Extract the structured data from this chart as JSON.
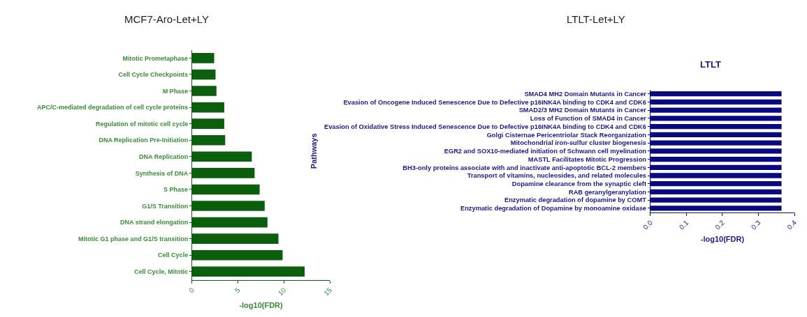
{
  "chart_data": [
    {
      "type": "bar",
      "orientation": "horizontal",
      "title": "MCF7-Aro-Let+LY",
      "xlabel": "-log10(FDR)",
      "categories": [
        "Mitotic Prometaphase",
        "Cell Cycle Checkpoints",
        "M Phase",
        "APC/C-mediated degradation of cell cycle proteins",
        "Regulation of mitotic cell cycle",
        "DNA Replication Pre-Initiation",
        "DNA Replication",
        "Synthesis of DNA",
        "S Phase",
        "G1/S Transition",
        "DNA strand elongation",
        "Mitotic G1 phase and G1/S transition",
        "Cell Cycle",
        "Cell Cycle, Mitotic"
      ],
      "values": [
        2.4,
        2.55,
        2.65,
        3.5,
        3.5,
        3.6,
        6.5,
        6.8,
        7.35,
        7.9,
        8.2,
        9.4,
        9.85,
        12.25
      ],
      "color": "#0b5e0b",
      "xlim": [
        0,
        15
      ],
      "xticks": [
        0,
        5,
        10,
        15
      ]
    },
    {
      "type": "bar",
      "orientation": "horizontal",
      "title": "LTLT-Let+LY",
      "subtitle": "LTLT",
      "xlabel": "-log10(FDR)",
      "ylabel": "Pathways",
      "categories": [
        "SMAD4 MH2 Domain Mutants in Cancer",
        "Evasion of Oncogene Induced Senescence Due to Defective p16INK4A binding to CDK4 and CDK6",
        "SMAD2/3 MH2 Domain Mutants in Cancer",
        "Loss of Function of SMAD4 in Cancer",
        "Evasion of Oxidative Stress Induced Senescence Due to Defective p16INK4A binding to CDK4 and CDK6",
        "Golgi Cisternae Pericentriolar Stack Reorganization",
        "Mitochondrial iron-sulfur cluster biogenesis",
        "EGR2 and SOX10-mediated initiation of Schwann cell myelination",
        "MASTL Facilitates Mitotic Progression",
        "BH3-only proteins associate with and inactivate anti-apoptotic BCL-2 members",
        "Transport of vitamins, nucleosides, and related molecules",
        "Dopamine clearance from the synaptic cleft",
        "RAB geranylgeranylation",
        "Enzymatic degradation of dopamine by COMT",
        "Enzymatic degradation of Dopamine by monoamine oxidase"
      ],
      "values": [
        0.364,
        0.364,
        0.364,
        0.364,
        0.364,
        0.364,
        0.364,
        0.364,
        0.364,
        0.364,
        0.364,
        0.364,
        0.364,
        0.364,
        0.364
      ],
      "color": "#0a0a80",
      "xlim": [
        0,
        0.4
      ],
      "xticks": [
        {
          "value": 0,
          "label": "0.0"
        },
        0.1,
        0.2,
        0.3,
        0.4
      ]
    }
  ]
}
